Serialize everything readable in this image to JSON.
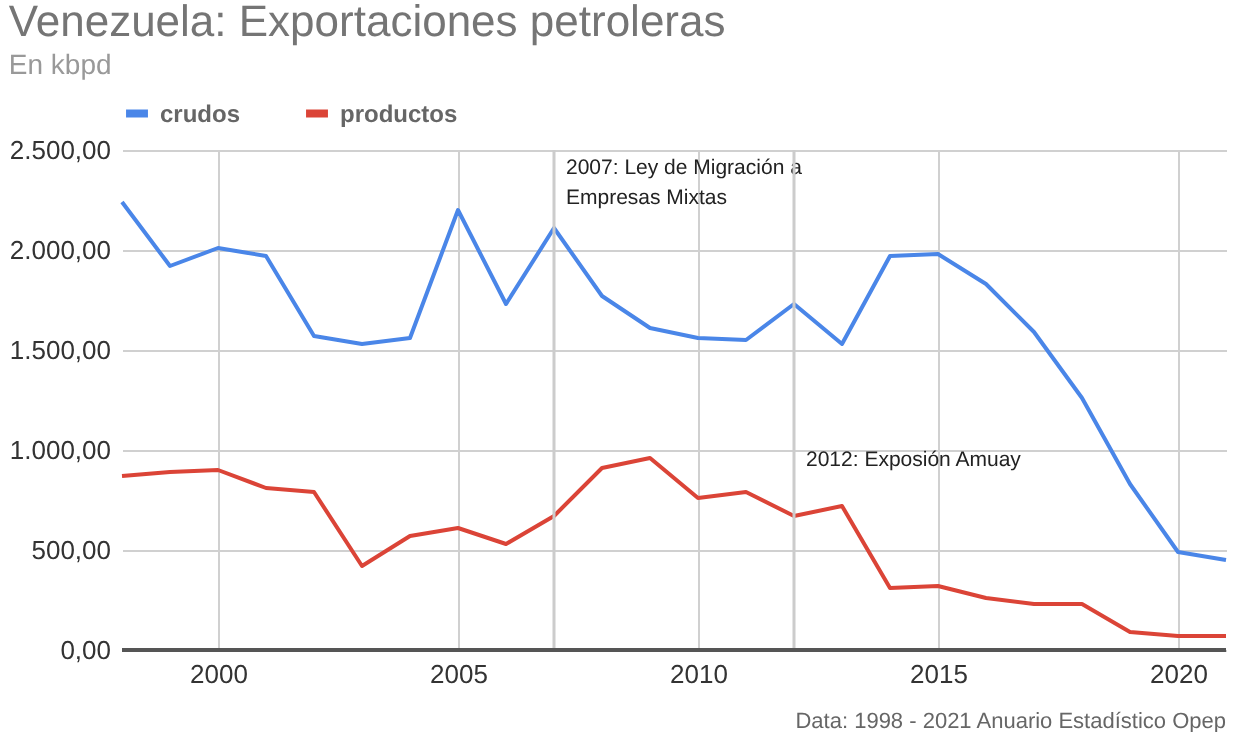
{
  "chart_data": {
    "type": "line",
    "title": "Venezuela: Exportaciones petroleras",
    "subtitle": "En kbpd",
    "x": [
      1998,
      1999,
      2000,
      2001,
      2002,
      2003,
      2004,
      2005,
      2006,
      2007,
      2008,
      2009,
      2010,
      2011,
      2012,
      2013,
      2014,
      2015,
      2016,
      2017,
      2018,
      2019,
      2020,
      2021
    ],
    "series": [
      {
        "name": "crudos",
        "color": "#4a86e8",
        "values": [
          2240,
          1920,
          2010,
          1970,
          1570,
          1530,
          1560,
          2200,
          1730,
          2110,
          1770,
          1610,
          1560,
          1550,
          1730,
          1530,
          1970,
          1980,
          1830,
          1590,
          1260,
          830,
          490,
          450
        ]
      },
      {
        "name": "productos",
        "color": "#db4437",
        "values": [
          870,
          890,
          900,
          810,
          790,
          420,
          570,
          610,
          530,
          670,
          910,
          960,
          760,
          790,
          670,
          720,
          310,
          320,
          260,
          230,
          230,
          90,
          70,
          70
        ]
      }
    ],
    "xlim": [
      1998,
      2021
    ],
    "xticks": [
      2000,
      2005,
      2010,
      2015,
      2020
    ],
    "ylim": [
      0,
      2500
    ],
    "yticks": [
      {
        "value": 0,
        "label": "0,00"
      },
      {
        "value": 500,
        "label": "500,00"
      },
      {
        "value": 1000,
        "label": "1.000,00"
      },
      {
        "value": 1500,
        "label": "1.500,00"
      },
      {
        "value": 2000,
        "label": "2.000,00"
      },
      {
        "value": 2500,
        "label": "2.500,00"
      }
    ],
    "grid": true,
    "legend": "top",
    "ref_lines": [
      {
        "axis": "x",
        "value": 2007,
        "label": "2007: Ley de Migración a Empresas Mixtas",
        "color": "#cccccc"
      },
      {
        "axis": "x",
        "value": 2012,
        "label": "2012: Exposión Amuay",
        "color": "#cccccc"
      }
    ],
    "annotations": [
      "Data: 1998 - 2021 Anuario Estadístico Opep"
    ]
  }
}
